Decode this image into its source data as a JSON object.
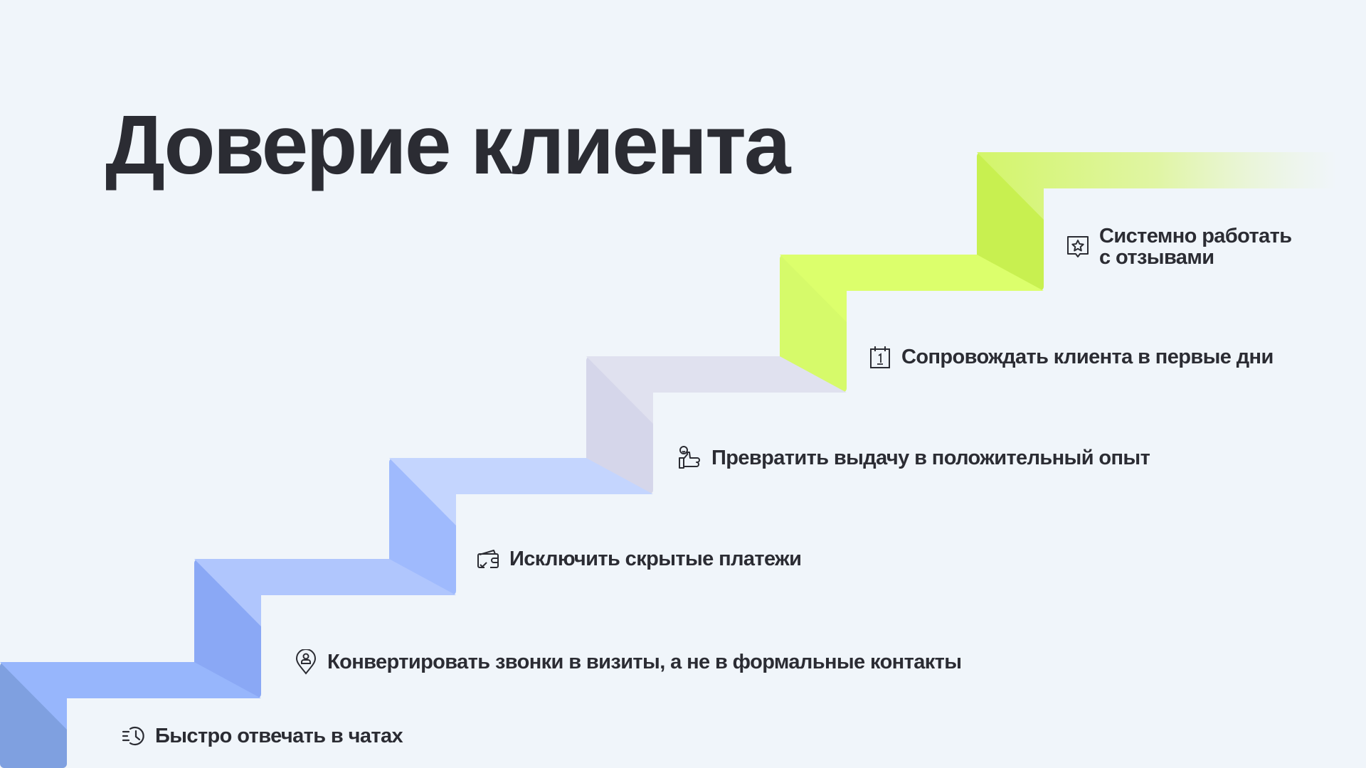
{
  "title": "Доверие клиента",
  "steps": [
    {
      "label": "Быстро отвечать в чатах",
      "icon": "clock-history-icon",
      "tread": "#97b6fc",
      "riser": "#7fa0e0"
    },
    {
      "label": "Конвертировать звонки в визиты, а не в формальные контакты",
      "icon": "location-person-icon",
      "tread": "#b0c6fd",
      "riser": "#8aa8f5"
    },
    {
      "label": "Исключить скрытые платежи",
      "icon": "wallet-check-icon",
      "tread": "#c4d5fe",
      "riser": "#9fbafd"
    },
    {
      "label": "Превратить выдачу в положительный опыт",
      "icon": "thumbs-up-smile-icon",
      "tread": "#e0e1ef",
      "riser": "#d5d6ea"
    },
    {
      "label": "Сопровождать клиента в первые дни",
      "icon": "calendar-day-one-icon",
      "tread": "#dcff6c",
      "riser": "#d6fa6a"
    },
    {
      "label_line1": "Системно работать",
      "label_line2": "с отзывами",
      "icon": "review-star-icon",
      "tread": "#d3f56a",
      "riser": "#c8f050"
    }
  ]
}
